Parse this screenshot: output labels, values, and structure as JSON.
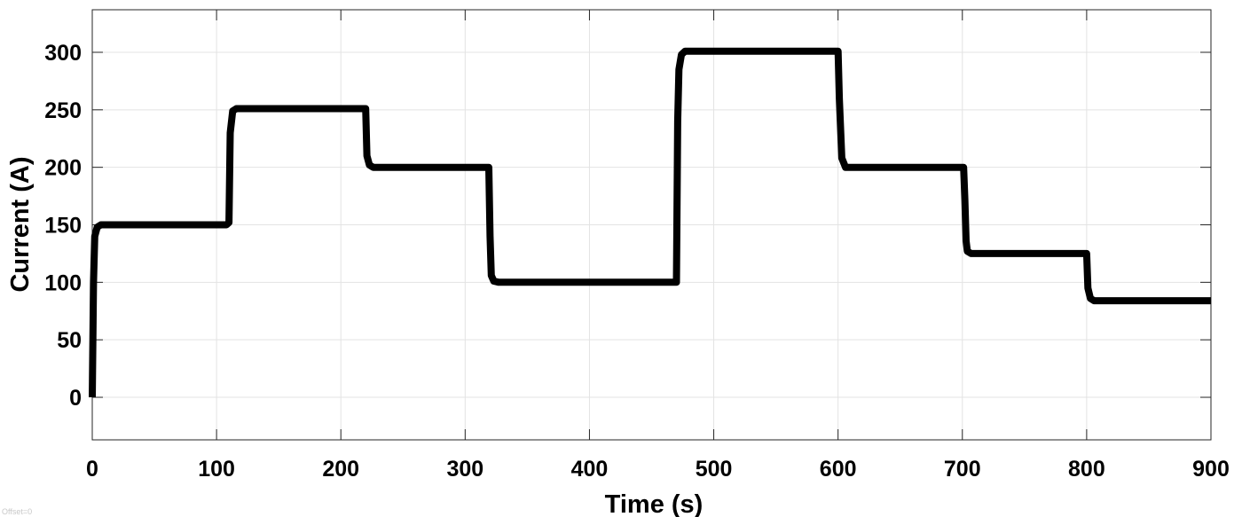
{
  "chart_data": {
    "type": "line",
    "title": "",
    "xlabel": "Time (s)",
    "ylabel": "Current (A)",
    "xlim": [
      0,
      900
    ],
    "ylim": [
      -37,
      337
    ],
    "xticks": [
      0,
      100,
      200,
      300,
      400,
      500,
      600,
      700,
      800,
      900
    ],
    "yticks": [
      0,
      50,
      100,
      150,
      200,
      250,
      300
    ],
    "grid": true,
    "line_color": "#000000",
    "series": [
      {
        "x": [
          0,
          1,
          2,
          4,
          7,
          108,
          110,
          111,
          113,
          116,
          220,
          221,
          223,
          226,
          319,
          320,
          321,
          323,
          327,
          470,
          471,
          472,
          474,
          477,
          600,
          601,
          603,
          606,
          701,
          702,
          703,
          704,
          707,
          800,
          801,
          803,
          806,
          900
        ],
        "y": [
          0,
          100,
          140,
          148,
          150,
          150,
          152,
          230,
          249,
          251,
          251,
          210,
          202,
          200,
          200,
          140,
          106,
          101,
          100,
          100,
          240,
          285,
          298,
          301,
          301,
          260,
          208,
          200,
          200,
          172,
          136,
          127,
          125,
          125,
          95,
          86,
          84,
          84
        ]
      }
    ]
  },
  "footer": {
    "note": "Offset=0"
  }
}
